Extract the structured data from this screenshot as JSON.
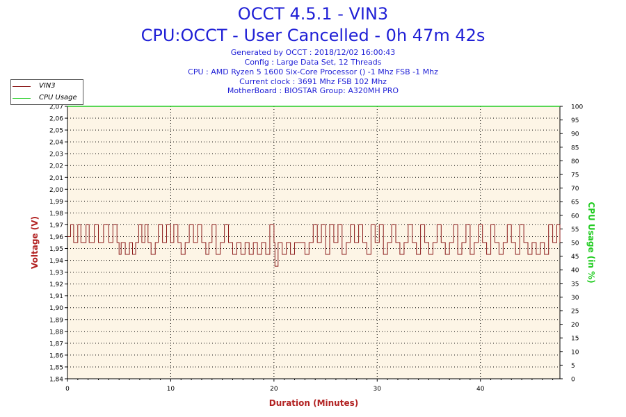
{
  "header": {
    "title_line1": "OCCT 4.5.1 - VIN3",
    "title_line2": "CPU:OCCT - User Cancelled - 0h 47m 42s",
    "info_lines": [
      "Generated by OCCT : 2018/12/02 16:00:43",
      "Config : Large Data Set, 12 Threads",
      "CPU : AMD Ryzen 5 1600 Six-Core Processor () -1 Mhz FSB -1 Mhz",
      "Current clock : 3691 Mhz FSB 102 Mhz",
      "MotherBoard : BIOSTAR Group: A320MH PRO"
    ]
  },
  "legend": {
    "items": [
      {
        "label": "VIN3",
        "color": "#8b1a1a"
      },
      {
        "label": "CPU Usage",
        "color": "#22cc22"
      }
    ]
  },
  "chart_data": {
    "type": "line",
    "xlabel": "Duration (Minutes)",
    "ylabel": "Voltage (V)",
    "y2label": "CPU Usage (in %)",
    "xlim": [
      0,
      47.7
    ],
    "ylim": [
      1.84,
      2.07
    ],
    "y2lim": [
      0,
      100
    ],
    "x_ticks": [
      "0",
      "10",
      "20",
      "30",
      "40"
    ],
    "y_ticks": [
      "1,84",
      "1,85",
      "1,86",
      "1,87",
      "1,88",
      "1,89",
      "1,90",
      "1,91",
      "1,92",
      "1,93",
      "1,94",
      "1,95",
      "1,96",
      "1,97",
      "1,98",
      "1,99",
      "2,00",
      "2,01",
      "2,02",
      "2,03",
      "2,04",
      "2,05",
      "2,06",
      "2,07"
    ],
    "y2_ticks": [
      "0",
      "5",
      "10",
      "15",
      "20",
      "25",
      "30",
      "35",
      "40",
      "45",
      "50",
      "55",
      "60",
      "65",
      "70",
      "75",
      "80",
      "85",
      "90",
      "95",
      "100"
    ],
    "grid": true,
    "legend_position": "top-left",
    "series": [
      {
        "name": "VIN3",
        "axis": "left",
        "color": "#8b1a1a",
        "x": [
          0,
          0.3,
          0.6,
          1.0,
          1.3,
          1.8,
          2.1,
          2.6,
          3.0,
          3.5,
          4.0,
          4.4,
          4.8,
          5.0,
          5.2,
          5.6,
          6.0,
          6.3,
          6.6,
          6.9,
          7.2,
          7.5,
          7.8,
          8.1,
          8.5,
          8.8,
          9.2,
          9.6,
          10.0,
          10.3,
          10.7,
          11.0,
          11.4,
          11.8,
          12.2,
          12.6,
          13.0,
          13.4,
          13.7,
          14.0,
          14.4,
          14.8,
          15.2,
          15.6,
          16.0,
          16.4,
          16.8,
          17.2,
          17.6,
          18.0,
          18.4,
          18.8,
          19.2,
          19.6,
          20.0,
          20.1,
          20.4,
          20.8,
          21.2,
          21.6,
          22.0,
          22.5,
          23.0,
          23.4,
          23.8,
          24.2,
          24.6,
          25.0,
          25.4,
          25.8,
          26.2,
          26.6,
          27.0,
          27.4,
          27.8,
          28.2,
          28.6,
          29.0,
          29.4,
          29.8,
          30.2,
          30.6,
          31.0,
          31.4,
          31.8,
          32.2,
          32.6,
          33.0,
          33.4,
          33.8,
          34.2,
          34.6,
          35.0,
          35.4,
          35.8,
          36.2,
          36.6,
          37.0,
          37.4,
          37.8,
          38.2,
          38.6,
          39.0,
          39.4,
          39.8,
          40.2,
          40.6,
          41.0,
          41.4,
          41.8,
          42.2,
          42.6,
          43.0,
          43.4,
          43.8,
          44.2,
          44.6,
          45.0,
          45.4,
          45.8,
          46.2,
          46.6,
          47.0,
          47.4,
          47.7
        ],
        "y": [
          1.96,
          1.97,
          1.955,
          1.97,
          1.955,
          1.97,
          1.955,
          1.97,
          1.955,
          1.97,
          1.955,
          1.97,
          1.955,
          1.945,
          1.955,
          1.945,
          1.955,
          1.945,
          1.955,
          1.97,
          1.955,
          1.97,
          1.955,
          1.945,
          1.955,
          1.97,
          1.955,
          1.97,
          1.955,
          1.97,
          1.955,
          1.945,
          1.955,
          1.97,
          1.955,
          1.97,
          1.955,
          1.945,
          1.955,
          1.97,
          1.945,
          1.955,
          1.97,
          1.955,
          1.945,
          1.955,
          1.945,
          1.955,
          1.945,
          1.955,
          1.945,
          1.955,
          1.945,
          1.97,
          1.955,
          1.935,
          1.955,
          1.945,
          1.955,
          1.945,
          1.955,
          1.955,
          1.945,
          1.955,
          1.97,
          1.955,
          1.97,
          1.945,
          1.97,
          1.955,
          1.97,
          1.945,
          1.955,
          1.97,
          1.955,
          1.97,
          1.955,
          1.945,
          1.97,
          1.955,
          1.97,
          1.945,
          1.955,
          1.97,
          1.955,
          1.945,
          1.955,
          1.97,
          1.955,
          1.945,
          1.97,
          1.955,
          1.945,
          1.955,
          1.97,
          1.955,
          1.945,
          1.955,
          1.97,
          1.945,
          1.955,
          1.97,
          1.945,
          1.955,
          1.97,
          1.955,
          1.945,
          1.97,
          1.955,
          1.945,
          1.955,
          1.97,
          1.955,
          1.945,
          1.97,
          1.955,
          1.945,
          1.955,
          1.945,
          1.955,
          1.945,
          1.97,
          1.955,
          1.97,
          1.955
        ]
      },
      {
        "name": "CPU Usage",
        "axis": "right",
        "color": "#22cc22",
        "x": [
          0,
          47.7
        ],
        "y": [
          100,
          100
        ]
      }
    ]
  }
}
